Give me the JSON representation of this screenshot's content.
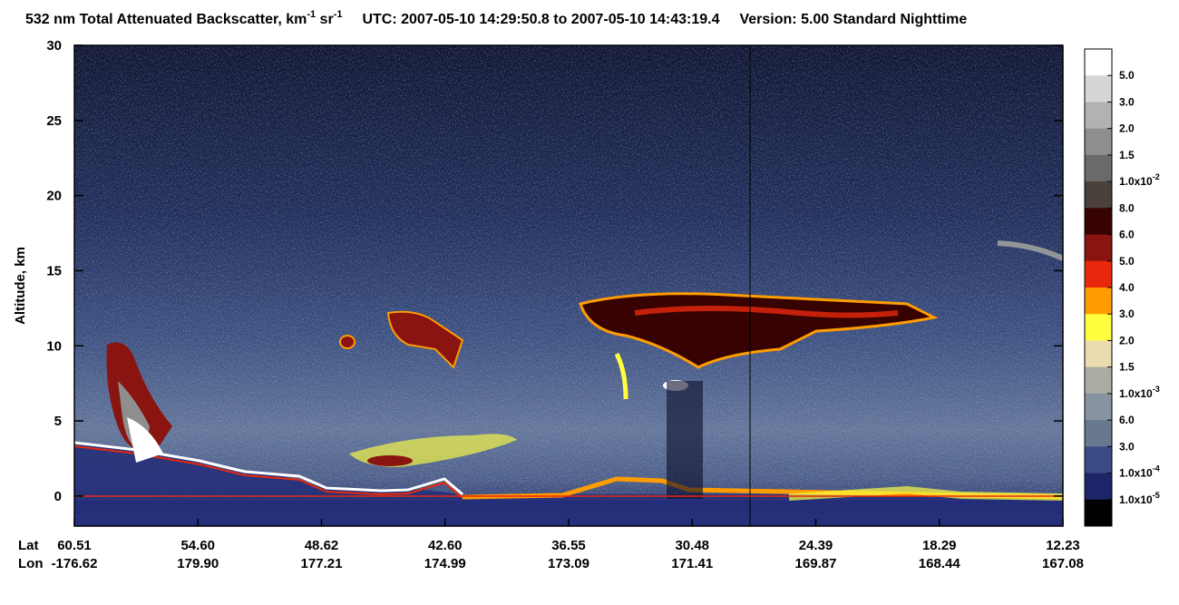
{
  "chart_data": {
    "type": "heatmap",
    "title": [
      "532 nm Total Attenuated Backscatter, km",
      "-1",
      " sr",
      "-1",
      "UTC:  2007-05-10 14:29:50.8  to  2007-05-10 14:43:19.4",
      "Version: 5.00  Standard  Nighttime"
    ],
    "y_label": "Altitude, km",
    "ylim": [
      -2,
      30
    ],
    "yticks": [
      0,
      5,
      10,
      15,
      20,
      25,
      30
    ],
    "x_row_names": [
      "Lat",
      "Lon"
    ],
    "lat": [
      "60.51",
      "54.60",
      "48.62",
      "42.60",
      "36.55",
      "30.48",
      "24.39",
      "18.29",
      "12.23"
    ],
    "lon": [
      "-176.62",
      "179.90",
      "177.21",
      "174.99",
      "173.09",
      "171.41",
      "169.87",
      "168.44",
      "167.08"
    ],
    "colorbar": {
      "colors": [
        "#ffffff",
        "#d6d6d6",
        "#b2b2b2",
        "#8e8e8e",
        "#6a6a6a",
        "#4a403c",
        "#360202",
        "#8a1410",
        "#e8280c",
        "#ff9c00",
        "#ffff40",
        "#eadcb0",
        "#aaaba2",
        "#8893a2",
        "#67788f",
        "#3a4a82",
        "#1e2468",
        "#000000"
      ],
      "labels": [
        {
          "text": "5.0"
        },
        {
          "text": "3.0"
        },
        {
          "text": "2.0"
        },
        {
          "text": "1.5"
        },
        {
          "text": "1.0x10",
          "sup": "-2"
        },
        {
          "text": "8.0"
        },
        {
          "text": "6.0"
        },
        {
          "text": "5.0"
        },
        {
          "text": "4.0"
        },
        {
          "text": "3.0"
        },
        {
          "text": "2.0"
        },
        {
          "text": "1.5"
        },
        {
          "text": "1.0x10",
          "sup": "-3"
        },
        {
          "text": "6.0"
        },
        {
          "text": "3.0"
        },
        {
          "text": "1.0x10",
          "sup": "-4"
        },
        {
          "text": "1.0x10",
          "sup": "-5"
        }
      ]
    }
  }
}
